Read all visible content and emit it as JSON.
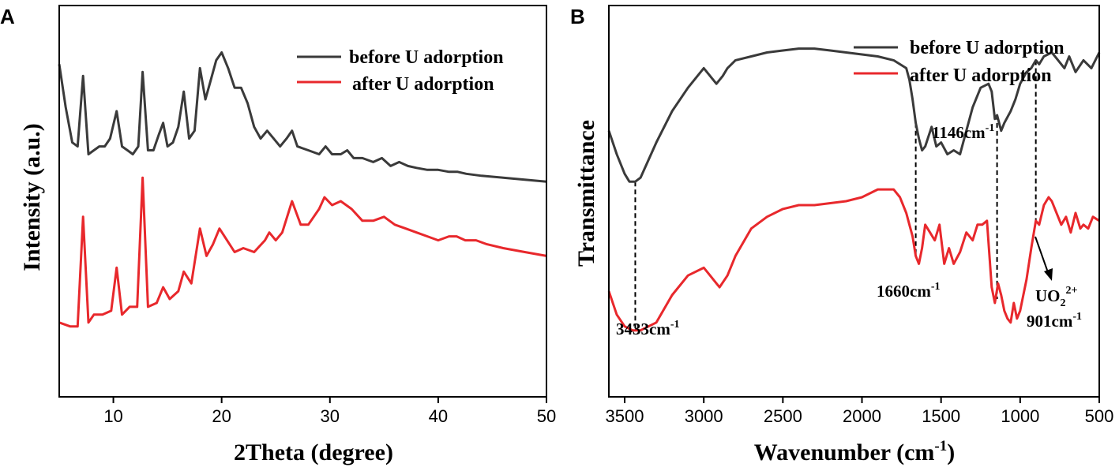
{
  "colors": {
    "before": "#3a3a3a",
    "after": "#e8282c",
    "axis": "#000000"
  },
  "chart_data": [
    {
      "panel": "A",
      "type": "line",
      "title": "",
      "xlabel": "2Theta (degree)",
      "ylabel": "Intensity (a.u.)",
      "xlim": [
        5,
        50
      ],
      "ylim": [
        0,
        100
      ],
      "xticks": [
        10,
        20,
        30,
        40,
        50
      ],
      "yticks_shown": false,
      "legend_position": "top-right",
      "series": [
        {
          "name": "before U adorption",
          "color_key": "before",
          "x": [
            5.0,
            5.6,
            6.2,
            6.7,
            7.2,
            7.7,
            8.2,
            8.7,
            9.2,
            9.7,
            10.3,
            10.8,
            11.3,
            11.8,
            12.3,
            12.7,
            13.2,
            13.7,
            14.2,
            14.6,
            15.0,
            15.5,
            16.0,
            16.5,
            17.0,
            17.5,
            18.0,
            18.5,
            19.0,
            19.5,
            20.0,
            20.6,
            21.2,
            21.8,
            22.4,
            23.0,
            23.6,
            24.2,
            24.8,
            25.4,
            26.0,
            26.5,
            27.0,
            28.0,
            29.0,
            29.6,
            30.2,
            31.0,
            31.6,
            32.2,
            33.0,
            34.0,
            34.8,
            35.6,
            36.4,
            37.2,
            38.0,
            39.0,
            40.0,
            41.0,
            41.8,
            42.6,
            44.0,
            46.0,
            48.0,
            50.0
          ],
          "y": [
            85.0,
            74.0,
            65.0,
            64.0,
            82.0,
            62.0,
            63.0,
            64.0,
            64.0,
            66.0,
            73.0,
            64.0,
            63.0,
            62.0,
            64.0,
            83.0,
            63.0,
            63.0,
            67.0,
            70.0,
            64.0,
            65.0,
            69.0,
            78.0,
            66.0,
            68.0,
            84.0,
            76.0,
            81.0,
            86.0,
            88.0,
            84.0,
            79.0,
            79.0,
            75.0,
            69.0,
            66.0,
            68.0,
            66.0,
            64.0,
            66.0,
            68.0,
            64.0,
            63.0,
            62.0,
            64.0,
            62.0,
            62.0,
            63.0,
            61.0,
            61.0,
            60.0,
            61.0,
            59.0,
            60.0,
            59.0,
            58.5,
            58.0,
            58.0,
            57.5,
            57.5,
            57.0,
            56.5,
            56.0,
            55.5,
            55.0
          ]
        },
        {
          "name": "after U adorption",
          "color_key": "after",
          "x": [
            5.0,
            6.0,
            6.7,
            7.2,
            7.7,
            8.2,
            9.0,
            9.8,
            10.3,
            10.8,
            11.5,
            12.2,
            12.7,
            13.2,
            14.0,
            14.6,
            15.2,
            16.0,
            16.5,
            17.2,
            18.0,
            18.6,
            19.2,
            19.8,
            20.5,
            21.2,
            22.0,
            23.0,
            24.0,
            24.4,
            25.0,
            25.6,
            26.5,
            27.3,
            28.0,
            29.0,
            29.5,
            30.2,
            31.0,
            32.0,
            33.0,
            34.0,
            35.0,
            36.0,
            37.0,
            38.0,
            39.0,
            40.0,
            41.0,
            41.7,
            42.5,
            43.5,
            44.5,
            46.0,
            48.0,
            50.0
          ],
          "y": [
            19.0,
            18.0,
            18.0,
            46.0,
            19.0,
            21.0,
            21.0,
            22.0,
            33.0,
            21.0,
            23.0,
            23.0,
            56.0,
            23.0,
            24.0,
            28.0,
            25.0,
            27.0,
            32.0,
            29.0,
            43.0,
            36.0,
            39.0,
            43.0,
            40.0,
            37.0,
            38.0,
            37.0,
            40.0,
            42.0,
            40.0,
            42.0,
            50.0,
            44.0,
            44.0,
            48.0,
            51.0,
            49.0,
            50.0,
            48.0,
            45.0,
            45.0,
            46.0,
            44.0,
            43.0,
            42.0,
            41.0,
            40.0,
            41.0,
            41.0,
            40.0,
            40.0,
            39.0,
            38.0,
            37.0,
            36.0
          ]
        }
      ]
    },
    {
      "panel": "B",
      "type": "line",
      "title": "",
      "xlabel": "Wavenumber (cm",
      "xlabel_sup": "-1",
      "xlabel_suffix": ")",
      "ylabel": "Transmittance",
      "xlim": [
        3600,
        500
      ],
      "ylim": [
        0,
        100
      ],
      "xticks": [
        3500,
        3000,
        2500,
        2000,
        1500,
        1000,
        500
      ],
      "yticks_shown": false,
      "legend_position": "top-right",
      "series": [
        {
          "name": "before U adorption",
          "color_key": "before",
          "x": [
            3600,
            3550,
            3500,
            3470,
            3433,
            3400,
            3300,
            3200,
            3100,
            3000,
            2960,
            2920,
            2880,
            2850,
            2800,
            2700,
            2600,
            2500,
            2400,
            2300,
            2200,
            2100,
            2000,
            1900,
            1800,
            1720,
            1700,
            1680,
            1660,
            1640,
            1620,
            1600,
            1560,
            1530,
            1500,
            1460,
            1420,
            1380,
            1340,
            1300,
            1250,
            1200,
            1180,
            1160,
            1146,
            1120,
            1100,
            1060,
            1030,
            1000,
            960,
            930,
            901,
            880,
            850,
            800,
            760,
            720,
            690,
            650,
            600,
            550,
            500
          ],
          "y": [
            68.0,
            62.0,
            57.0,
            55.0,
            55.0,
            56.0,
            65.0,
            73.0,
            79.0,
            84.0,
            82.0,
            80.0,
            82.0,
            84.0,
            86.0,
            87.0,
            88.0,
            88.5,
            89.0,
            89.0,
            88.5,
            88.0,
            87.5,
            87.0,
            86.0,
            84.0,
            81.0,
            76.0,
            70.0,
            66.0,
            63.0,
            64.0,
            69.0,
            64.0,
            65.0,
            62.0,
            63.0,
            62.0,
            68.0,
            74.0,
            79.0,
            80.0,
            78.0,
            71.0,
            72.0,
            68.0,
            70.0,
            73.0,
            76.0,
            80.0,
            83.0,
            84.0,
            86.0,
            85.0,
            87.0,
            88.0,
            86.0,
            84.0,
            87.0,
            83.0,
            86.0,
            84.0,
            88.0
          ]
        },
        {
          "name": "after U adorption",
          "color_key": "after",
          "x": [
            3600,
            3550,
            3500,
            3450,
            3433,
            3400,
            3300,
            3200,
            3100,
            3000,
            2960,
            2920,
            2900,
            2850,
            2800,
            2700,
            2600,
            2500,
            2400,
            2300,
            2200,
            2100,
            2000,
            1900,
            1800,
            1760,
            1720,
            1700,
            1680,
            1660,
            1640,
            1620,
            1600,
            1570,
            1540,
            1510,
            1480,
            1450,
            1420,
            1380,
            1340,
            1300,
            1270,
            1240,
            1210,
            1180,
            1160,
            1140,
            1120,
            1100,
            1080,
            1060,
            1040,
            1020,
            1000,
            960,
            930,
            901,
            880,
            850,
            820,
            800,
            770,
            740,
            710,
            680,
            650,
            620,
            600,
            570,
            540,
            500
          ],
          "y": [
            27.0,
            21.0,
            18.0,
            17.0,
            17.0,
            17.0,
            19.0,
            26.0,
            31.0,
            33.0,
            31.0,
            29.0,
            28.0,
            31.0,
            36.0,
            43.0,
            46.0,
            48.0,
            49.0,
            49.0,
            49.5,
            50.0,
            51.0,
            53.0,
            53.0,
            51.0,
            47.0,
            44.0,
            41.0,
            36.0,
            34.0,
            38.0,
            44.0,
            42.0,
            40.0,
            44.0,
            34.0,
            38.0,
            34.0,
            37.0,
            42.0,
            40.0,
            44.0,
            44.0,
            45.0,
            28.0,
            24.0,
            29.0,
            26.0,
            22.0,
            20.0,
            19.0,
            24.0,
            20.0,
            22.0,
            30.0,
            38.0,
            45.0,
            44.0,
            49.0,
            51.0,
            50.0,
            47.0,
            44.0,
            46.0,
            42.0,
            47.0,
            43.0,
            44.0,
            43.0,
            46.0,
            45.0
          ]
        }
      ],
      "annotations": {
        "peak_3433": {
          "wavenumber": 3433,
          "text": "3433cm",
          "sup": "-1"
        },
        "peak_1660": {
          "wavenumber": 1660,
          "text": "1660cm",
          "sup": "-1"
        },
        "peak_1146": {
          "wavenumber": 1146,
          "text": "1146cm",
          "sup": "-1"
        },
        "peak_901": {
          "wavenumber": 901,
          "text": "901cm",
          "sup": "-1"
        },
        "uranyl": {
          "text": "UO",
          "sub": "2",
          "sup": "2+"
        }
      }
    }
  ]
}
